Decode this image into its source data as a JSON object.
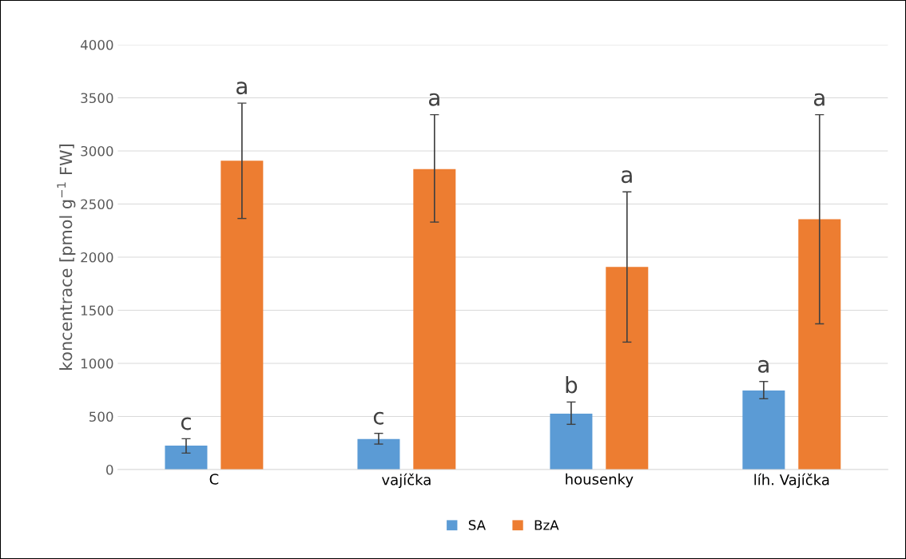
{
  "chart_data": {
    "type": "bar",
    "ylabel": "koncentrace [pmol g$^{−1}$ FW]",
    "categories": [
      "C",
      "vajíčka",
      "housenky",
      "líh. Vajíčka"
    ],
    "series": [
      {
        "name": "SA",
        "color": "#5b9bd5",
        "values": [
          225,
          287,
          527,
          744
        ],
        "errors": [
          [
            155,
            290
          ],
          [
            240,
            341
          ],
          [
            426,
            636
          ],
          [
            667,
            829
          ]
        ]
      },
      {
        "name": "BzA",
        "color": "#ed7d31",
        "values": [
          2907,
          2829,
          1907,
          2357
        ],
        "errors": [
          [
            2364,
            3450
          ],
          [
            2330,
            3341
          ],
          [
            1200,
            2615
          ],
          [
            1372,
            3341
          ]
        ]
      }
    ],
    "annotations": [
      "c",
      "a",
      "c",
      "a",
      "b",
      "a",
      "a",
      "a"
    ],
    "ylim": [
      0,
      4000
    ],
    "yticks": [
      0,
      500,
      1000,
      1500,
      2000,
      2500,
      3000,
      3500,
      4000
    ],
    "grid": "y",
    "legend": "bottom"
  }
}
